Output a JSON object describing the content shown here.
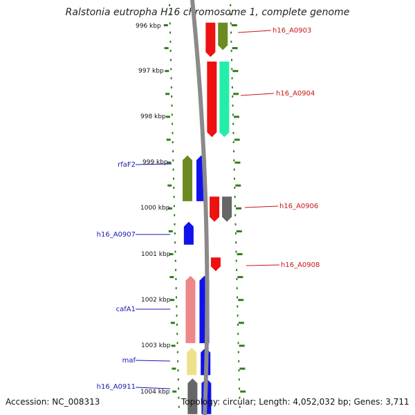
{
  "title": "Ralstonia eutropha H16 chromosome 1, complete genome",
  "footer": {
    "accession": "Accession: NC_008313",
    "summary": "Topology: circular; Length: 4,052,032 bp; Genes: 3,711"
  },
  "colors": {
    "tick": "#2e7d1a",
    "backbone": "#8a8a8a",
    "label_left": "#1515b4",
    "label_right": "#c81414"
  },
  "ruler": [
    {
      "label": "996 kbp"
    },
    {
      "label": "997 kbp"
    },
    {
      "label": "998 kbp"
    },
    {
      "label": "999 kbp"
    },
    {
      "label": "1000 kbp"
    },
    {
      "label": "1001 kbp"
    },
    {
      "label": "1002 kbp"
    },
    {
      "label": "1003 kbp"
    },
    {
      "label": "1004 kbp"
    }
  ],
  "gene_labels": {
    "right": [
      "h16_A0903",
      "h16_A0904",
      "h16_A0906",
      "h16_A0908"
    ],
    "left": [
      "rfaF2",
      "h16_A0907",
      "cafA1",
      "maf",
      "h16_A0911"
    ]
  },
  "genes": [
    {
      "strand": "+",
      "color": "#ee1111",
      "start_kbp": 995.95,
      "end_kbp": 996.7
    },
    {
      "strand": "+",
      "color": "#6b8a22",
      "start_kbp": 995.95,
      "end_kbp": 996.55
    },
    {
      "strand": "+",
      "color": "#ee1111",
      "start_kbp": 996.8,
      "end_kbp": 998.45
    },
    {
      "strand": "+",
      "color": "#22eeaa",
      "start_kbp": 996.8,
      "end_kbp": 998.45
    },
    {
      "strand": "-",
      "color": "#6b8a22",
      "start_kbp": 998.85,
      "end_kbp": 999.85
    },
    {
      "strand": "-",
      "color": "#1111ee",
      "start_kbp": 998.85,
      "end_kbp": 999.85
    },
    {
      "strand": "+",
      "color": "#ee1111",
      "start_kbp": 999.75,
      "end_kbp": 1000.3
    },
    {
      "strand": "+",
      "color": "#666666",
      "start_kbp": 999.75,
      "end_kbp": 1000.3
    },
    {
      "strand": "-",
      "color": "#1111ee",
      "start_kbp": 1000.3,
      "end_kbp": 1000.8
    },
    {
      "strand": "+",
      "color": "#ee1111",
      "start_kbp": 1001.08,
      "end_kbp": 1001.38
    },
    {
      "strand": "-",
      "color": "#ee8888",
      "start_kbp": 1001.48,
      "end_kbp": 1002.95
    },
    {
      "strand": "-",
      "color": "#1111ee",
      "start_kbp": 1001.48,
      "end_kbp": 1002.95
    },
    {
      "strand": "-",
      "color": "#eee08a",
      "start_kbp": 1003.05,
      "end_kbp": 1003.65
    },
    {
      "strand": "-",
      "color": "#1111ee",
      "start_kbp": 1003.05,
      "end_kbp": 1003.65
    },
    {
      "strand": "-",
      "color": "#666666",
      "start_kbp": 1003.72,
      "end_kbp": 1004.5
    },
    {
      "strand": "-",
      "color": "#1111ee",
      "start_kbp": 1003.72,
      "end_kbp": 1004.5
    }
  ]
}
